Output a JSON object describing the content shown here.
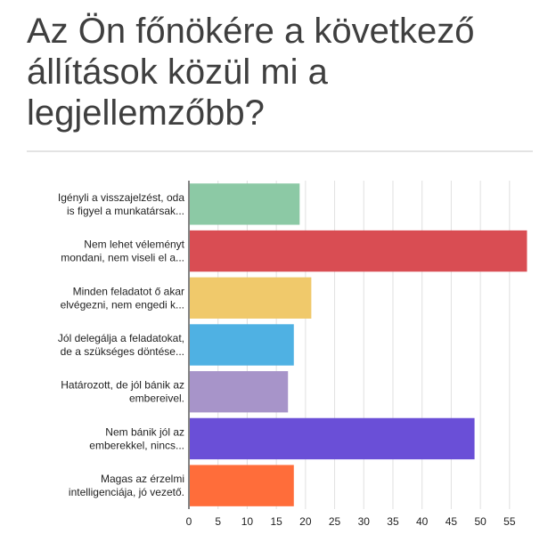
{
  "title": "Az Ön főnökére a következő állítások közül mi a legjellemzőbb?",
  "chart_data": {
    "type": "bar",
    "orientation": "horizontal",
    "title": "Az Ön főnökére a következő állítások közül mi a legjellemzőbb?",
    "xlabel": "",
    "ylabel": "",
    "categories": [
      [
        "Igényli a visszajelzést, oda",
        "is figyel a munkatársak..."
      ],
      [
        "Nem lehet véleményt",
        "mondani, nem viseli el a..."
      ],
      [
        "Minden feladatot ő akar",
        "elvégezni, nem engedi k..."
      ],
      [
        "Jól delegálja a feladatokat,",
        "de a szükséges döntése..."
      ],
      [
        "Határozott, de jól bánik az",
        "embereivel."
      ],
      [
        "Nem bánik jól az",
        "emberekkel, nincs..."
      ],
      [
        "Magas az érzelmi",
        "intelligenciája, jó vezető."
      ]
    ],
    "values": [
      19,
      58,
      21,
      18,
      17,
      49,
      18
    ],
    "colors": [
      "#8cc9a5",
      "#d94d53",
      "#f0c96b",
      "#4fb1e3",
      "#a794c9",
      "#6a4fd7",
      "#ff6d3a"
    ],
    "xlim": [
      0,
      59
    ],
    "xticks": [
      0,
      5,
      10,
      15,
      20,
      25,
      30,
      35,
      40,
      45,
      50,
      55
    ],
    "grid": true,
    "legend": "none"
  }
}
